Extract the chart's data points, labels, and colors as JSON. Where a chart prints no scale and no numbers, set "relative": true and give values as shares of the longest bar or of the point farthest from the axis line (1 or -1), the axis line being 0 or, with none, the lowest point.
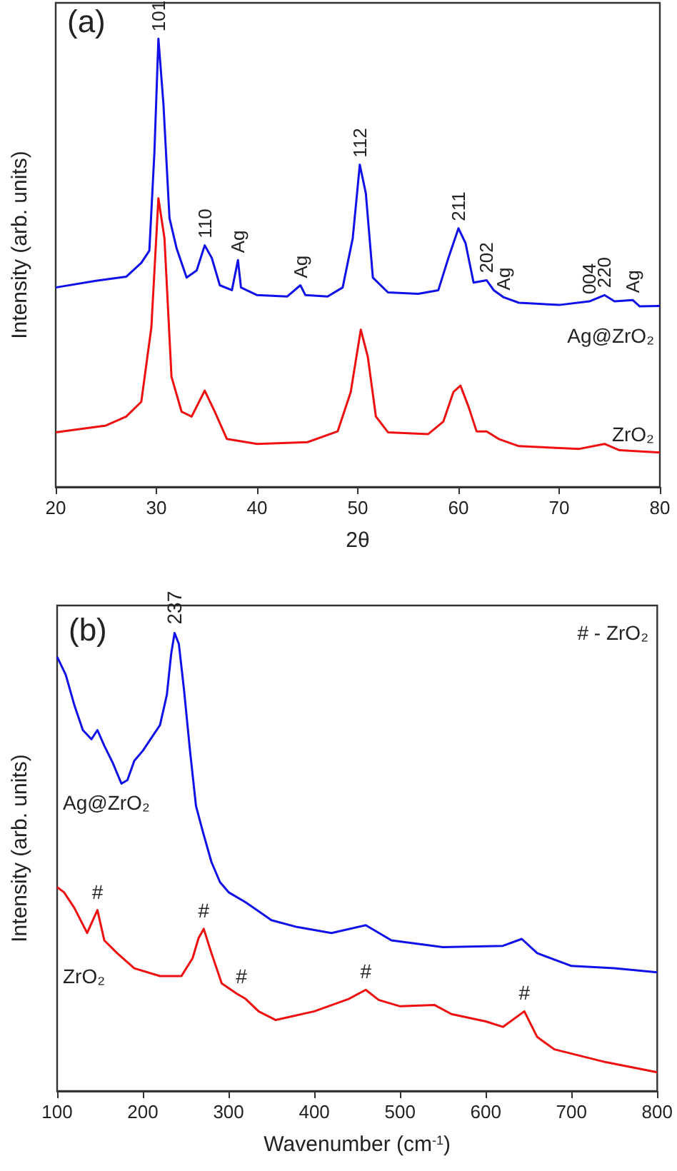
{
  "chart_data": [
    {
      "type": "line",
      "title": "(a)",
      "xlabel": "2θ",
      "ylabel": "Intensity (arb. units)",
      "relative": true,
      "xlim": [
        20,
        80
      ],
      "xticks": [
        20,
        30,
        40,
        50,
        60,
        70,
        80
      ],
      "series": [
        {
          "name": "Ag@ZrO₂",
          "color": "#1010e8",
          "x": [
            20,
            24,
            27,
            28.5,
            29.3,
            29.8,
            30.2,
            30.7,
            31.3,
            32,
            33,
            34,
            34.8,
            35.5,
            36.3,
            37.5,
            38.1,
            38.4,
            40,
            43,
            44.3,
            44.8,
            47,
            48.5,
            49.5,
            50.2,
            50.8,
            51.5,
            53,
            56,
            58,
            59,
            60,
            60.7,
            61.5,
            62.8,
            63.5,
            64.5,
            66,
            70,
            73,
            74.5,
            75.5,
            77.3,
            78,
            80
          ],
          "values": [
            0.445,
            0.46,
            0.469,
            0.5,
            0.527,
            0.745,
            1.0,
            0.854,
            0.6,
            0.533,
            0.467,
            0.483,
            0.539,
            0.511,
            0.45,
            0.439,
            0.506,
            0.445,
            0.428,
            0.425,
            0.45,
            0.428,
            0.425,
            0.445,
            0.555,
            0.719,
            0.655,
            0.467,
            0.434,
            0.431,
            0.439,
            0.511,
            0.577,
            0.544,
            0.456,
            0.461,
            0.439,
            0.423,
            0.411,
            0.406,
            0.414,
            0.428,
            0.414,
            0.417,
            0.403,
            0.404
          ]
        },
        {
          "name": "ZrO₂",
          "color": "#ee1010",
          "x": [
            20,
            25,
            27,
            28.5,
            29.5,
            30.2,
            30.8,
            31.5,
            32.5,
            33.5,
            34.8,
            35.8,
            37,
            40,
            45,
            48,
            49.3,
            50.3,
            51,
            51.8,
            53,
            57,
            58.5,
            59.5,
            60.2,
            61,
            61.8,
            62.8,
            64,
            66,
            72,
            74.5,
            76,
            80
          ],
          "values": [
            0.122,
            0.137,
            0.157,
            0.19,
            0.356,
            0.644,
            0.555,
            0.246,
            0.168,
            0.157,
            0.215,
            0.168,
            0.107,
            0.096,
            0.1,
            0.124,
            0.212,
            0.351,
            0.29,
            0.157,
            0.122,
            0.118,
            0.146,
            0.212,
            0.226,
            0.179,
            0.124,
            0.124,
            0.107,
            0.091,
            0.085,
            0.096,
            0.082,
            0.077
          ]
        }
      ],
      "annotations": [
        {
          "text": "101",
          "x": 30.2,
          "y": 1.0
        },
        {
          "text": "110",
          "x": 34.8,
          "y": 0.539
        },
        {
          "text": "Ag",
          "x": 38.1,
          "y": 0.506
        },
        {
          "text": "Ag",
          "x": 44.3,
          "y": 0.45
        },
        {
          "text": "112",
          "x": 50.2,
          "y": 0.719
        },
        {
          "text": "211",
          "x": 60,
          "y": 0.577
        },
        {
          "text": "202",
          "x": 62.8,
          "y": 0.461
        },
        {
          "text": "Ag",
          "x": 64.5,
          "y": 0.423
        },
        {
          "text": "004",
          "x": 73,
          "y": 0.414
        },
        {
          "text": "220",
          "x": 74.5,
          "y": 0.428
        },
        {
          "text": "Ag",
          "x": 77.3,
          "y": 0.417
        }
      ]
    },
    {
      "type": "line",
      "title": "(b)",
      "xlabel": "Wavenumber (cm$^{-1}$)",
      "ylabel": "Intensity (arb. units)",
      "relative": true,
      "xlim": [
        100,
        800
      ],
      "xticks": [
        100,
        200,
        300,
        400,
        500,
        600,
        700,
        800
      ],
      "series": [
        {
          "name": "Ag@ZrO₂",
          "color": "#1010e8",
          "x": [
            100,
            110,
            120,
            130,
            140,
            147,
            155,
            165,
            175,
            182,
            190,
            200,
            210,
            220,
            228,
            233,
            237,
            242,
            248,
            255,
            262,
            270,
            280,
            290,
            300,
            320,
            350,
            380,
            420,
            460,
            490,
            550,
            620,
            642,
            660,
            700,
            750,
            800
          ],
          "values": [
            0.948,
            0.909,
            0.843,
            0.788,
            0.768,
            0.788,
            0.754,
            0.716,
            0.671,
            0.679,
            0.721,
            0.743,
            0.771,
            0.799,
            0.865,
            0.954,
            1.0,
            0.976,
            0.876,
            0.743,
            0.622,
            0.566,
            0.5,
            0.456,
            0.434,
            0.412,
            0.373,
            0.358,
            0.345,
            0.362,
            0.329,
            0.314,
            0.317,
            0.332,
            0.301,
            0.273,
            0.268,
            0.259
          ]
        },
        {
          "name": "ZrO₂",
          "color": "#ee1010",
          "x": [
            100,
            108,
            120,
            135,
            147,
            155,
            170,
            190,
            220,
            245,
            258,
            265,
            271,
            280,
            292,
            310,
            320,
            335,
            355,
            400,
            440,
            460,
            475,
            500,
            540,
            560,
            600,
            620,
            645,
            660,
            680,
            740,
            800
          ],
          "values": [
            0.445,
            0.434,
            0.4,
            0.345,
            0.395,
            0.329,
            0.301,
            0.268,
            0.251,
            0.251,
            0.29,
            0.334,
            0.354,
            0.301,
            0.235,
            0.212,
            0.201,
            0.174,
            0.155,
            0.174,
            0.201,
            0.221,
            0.199,
            0.185,
            0.188,
            0.168,
            0.152,
            0.14,
            0.174,
            0.118,
            0.091,
            0.063,
            0.041
          ]
        }
      ],
      "annotations": [
        "# - ZrO₂",
        {
          "text": "237",
          "x": 237,
          "y": 1.0
        },
        {
          "text": "#",
          "x": 147,
          "y": 0.395
        },
        {
          "text": "#",
          "x": 271,
          "y": 0.354
        },
        {
          "text": "#",
          "x": 315,
          "y": 0.21
        },
        {
          "text": "#",
          "x": 460,
          "y": 0.221
        },
        {
          "text": "#",
          "x": 645,
          "y": 0.174
        }
      ]
    }
  ]
}
